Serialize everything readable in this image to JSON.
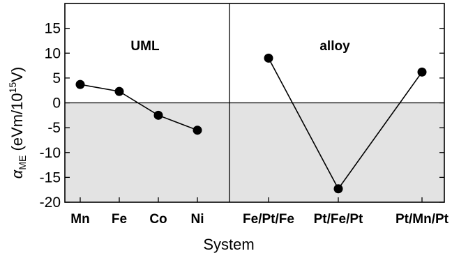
{
  "chart_data": {
    "type": "line",
    "xlabel": "System",
    "ylabel": {
      "symbol": "α",
      "subscript": "ME",
      "units_prefix": " (eVm/10",
      "units_exponent": "15",
      "units_suffix": "V)"
    },
    "ylim": [
      -20,
      20
    ],
    "yticks": [
      15,
      10,
      5,
      0,
      -5,
      -10,
      -15,
      -20
    ],
    "negative_region_shaded": true,
    "shade_color": "#e3e3e3",
    "panels": [
      {
        "label": "UML",
        "categories": [
          "Mn",
          "Fe",
          "Co",
          "Ni"
        ],
        "values": [
          3.7,
          2.3,
          -2.5,
          -5.5
        ]
      },
      {
        "label": "alloy",
        "categories": [
          "Fe/Pt/Fe",
          "Pt/Fe/Pt",
          "Pt/Mn/Pt"
        ],
        "values": [
          9.0,
          -17.3,
          6.2
        ]
      }
    ]
  }
}
